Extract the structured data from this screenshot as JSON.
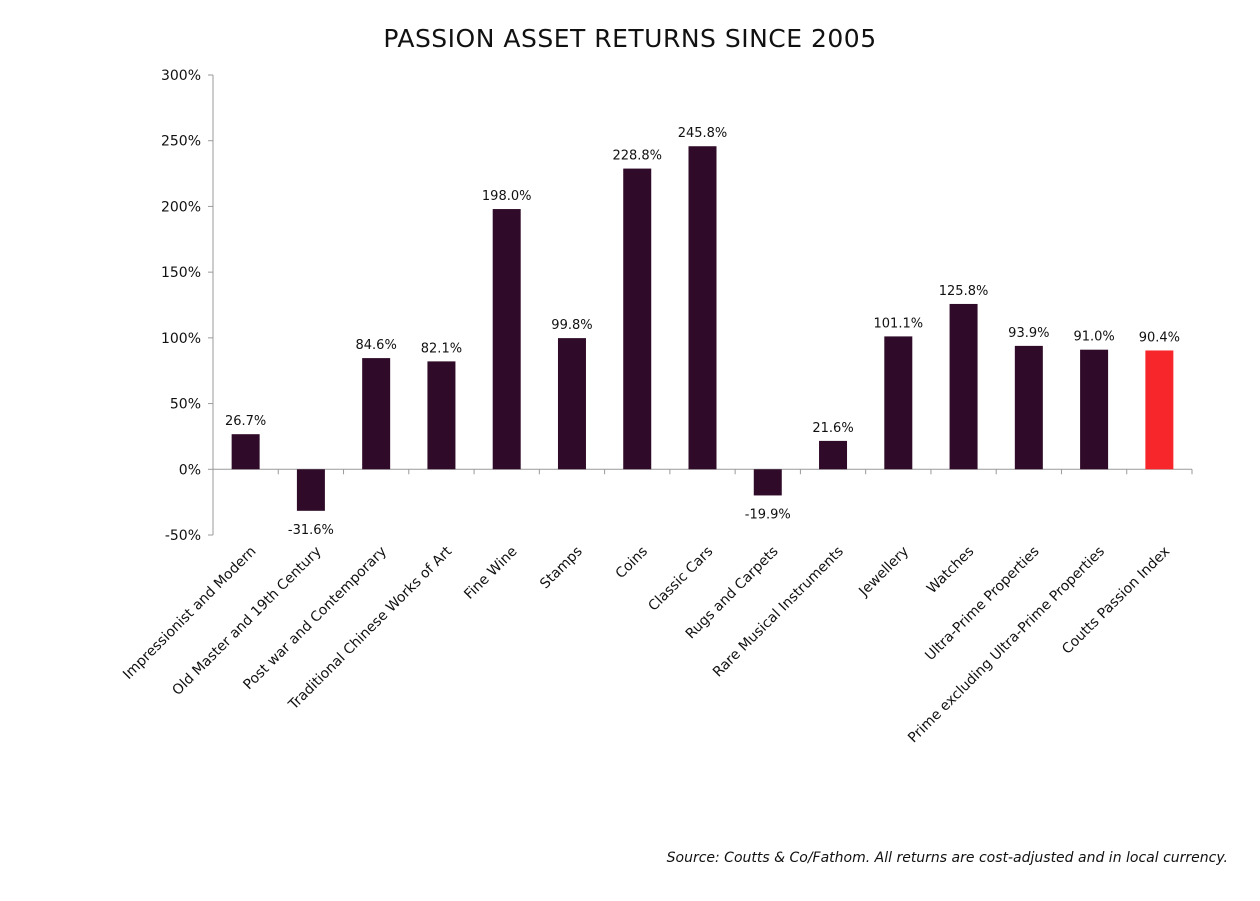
{
  "chart_data": {
    "type": "bar",
    "title": "PASSION ASSET RETURNS SINCE 2005",
    "xlabel": "",
    "ylabel": "",
    "ylim": [
      -50,
      300
    ],
    "yticks": [
      -50,
      0,
      50,
      100,
      150,
      200,
      250,
      300
    ],
    "ytick_labels": [
      "-50%",
      "0%",
      "50%",
      "100%",
      "150%",
      "200%",
      "250%",
      "300%"
    ],
    "categories": [
      "Impressionist and Modern",
      "Old Master and 19th Century",
      "Post war and Contemporary",
      "Traditional Chinese Works of Art",
      "Fine Wine",
      "Stamps",
      "Coins",
      "Classic Cars",
      "Rugs and Carpets",
      "Rare Musical Instruments",
      "Jewellery",
      "Watches",
      "Ultra-Prime Properties",
      "Prime excluding Ultra-Prime Properties",
      "Coutts Passion Index"
    ],
    "values": [
      26.7,
      -31.6,
      84.6,
      82.1,
      198.0,
      99.8,
      228.8,
      245.8,
      -19.9,
      21.6,
      101.1,
      125.8,
      93.9,
      91.0,
      90.4
    ],
    "data_labels": [
      "26.7%",
      "-31.6%",
      "84.6%",
      "82.1%",
      "198.0%",
      "99.8%",
      "228.8%",
      "245.8%",
      "-19.9%",
      "21.6%",
      "101.1%",
      "125.8%",
      "93.9%",
      "91.0%",
      "90.4%"
    ],
    "colors": {
      "default": "#2f0b29",
      "highlight": "#f7262a",
      "axis": "#9a9a9a"
    },
    "highlight_index": 14,
    "grid": false,
    "legend": "none",
    "source": "Source: Coutts & Co/Fathom. All returns are cost-adjusted and in local currency."
  }
}
